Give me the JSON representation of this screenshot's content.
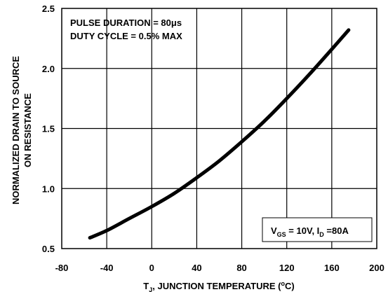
{
  "chart_data": {
    "type": "line",
    "xlabel_pre": "T",
    "xlabel_sub": "J",
    "xlabel_mid": ", JUNCTION TEMPERATURE (",
    "xlabel_sup": "o",
    "xlabel_post": "C)",
    "ylabel_line1": "NORMALIZED DRAIN TO SOURCE",
    "ylabel_line2": "ON RESISTANCE",
    "xlim": [
      -80,
      200
    ],
    "ylim": [
      0.5,
      2.5
    ],
    "xticks": [
      "-80",
      "-40",
      "0",
      "40",
      "80",
      "120",
      "160",
      "200"
    ],
    "yticks": [
      "0.5",
      "1.0",
      "1.5",
      "2.0",
      "2.5"
    ],
    "grid": true,
    "annotation_tl_line1": "PULSE DURATION = 80μs",
    "annotation_tl_line2": "DUTY CYCLE = 0.5% MAX",
    "annotation_br": {
      "v": "V",
      "v_sub": "GS",
      "mid": " = 10V, I",
      "i_sub": "D",
      "post": " =80A"
    },
    "series": [
      {
        "x": [
          -55,
          -40,
          -20,
          0,
          20,
          40,
          60,
          80,
          100,
          120,
          140,
          160,
          175
        ],
        "values": [
          0.59,
          0.65,
          0.75,
          0.85,
          0.96,
          1.09,
          1.23,
          1.39,
          1.56,
          1.75,
          1.95,
          2.16,
          2.32
        ]
      }
    ]
  }
}
